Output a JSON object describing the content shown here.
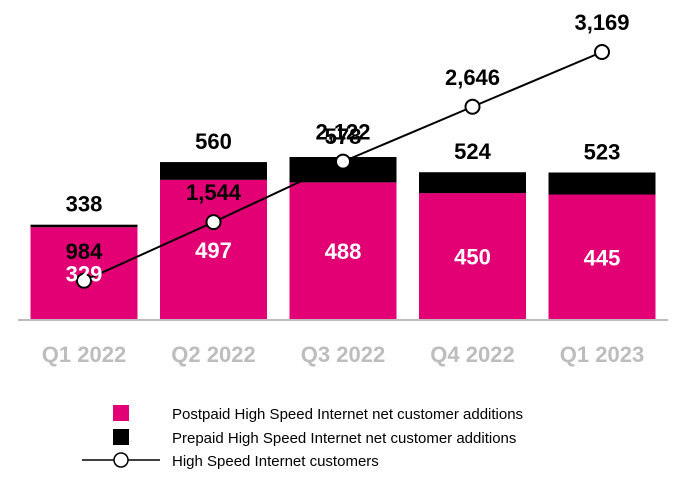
{
  "chart_data": {
    "type": "bar",
    "stacked": true,
    "categories": [
      "Q1 2022",
      "Q2 2022",
      "Q3 2022",
      "Q4 2022",
      "Q1 2023"
    ],
    "series": [
      {
        "name": "Postpaid High Speed Internet net customer additions",
        "kind": "bar",
        "color": "#e20074",
        "values": [
          329,
          497,
          488,
          450,
          445
        ]
      },
      {
        "name": "Prepaid High Speed Internet net customer additions",
        "kind": "bar",
        "color": "#000000",
        "values": [
          9,
          63,
          90,
          74,
          78
        ]
      },
      {
        "name": "High Speed Internet customers",
        "kind": "line",
        "color": "#000000",
        "marker": "open-circle",
        "values": [
          984,
          1544,
          2122,
          2646,
          3169
        ]
      }
    ],
    "bar_totals": [
      338,
      560,
      578,
      524,
      523
    ],
    "bar_total_labels": [
      "338",
      "560",
      "578",
      "524",
      "523"
    ],
    "postpaid_labels": [
      "329",
      "497",
      "488",
      "450",
      "445"
    ],
    "line_labels": [
      "984",
      "1,544",
      "2,122",
      "2,646",
      "3,169"
    ],
    "bar_ylim": [
      0,
      640
    ],
    "line_ylim": [
      -1870,
      3500
    ],
    "legend_position": "bottom-center",
    "title": "",
    "xlabel": "",
    "ylabel": ""
  }
}
